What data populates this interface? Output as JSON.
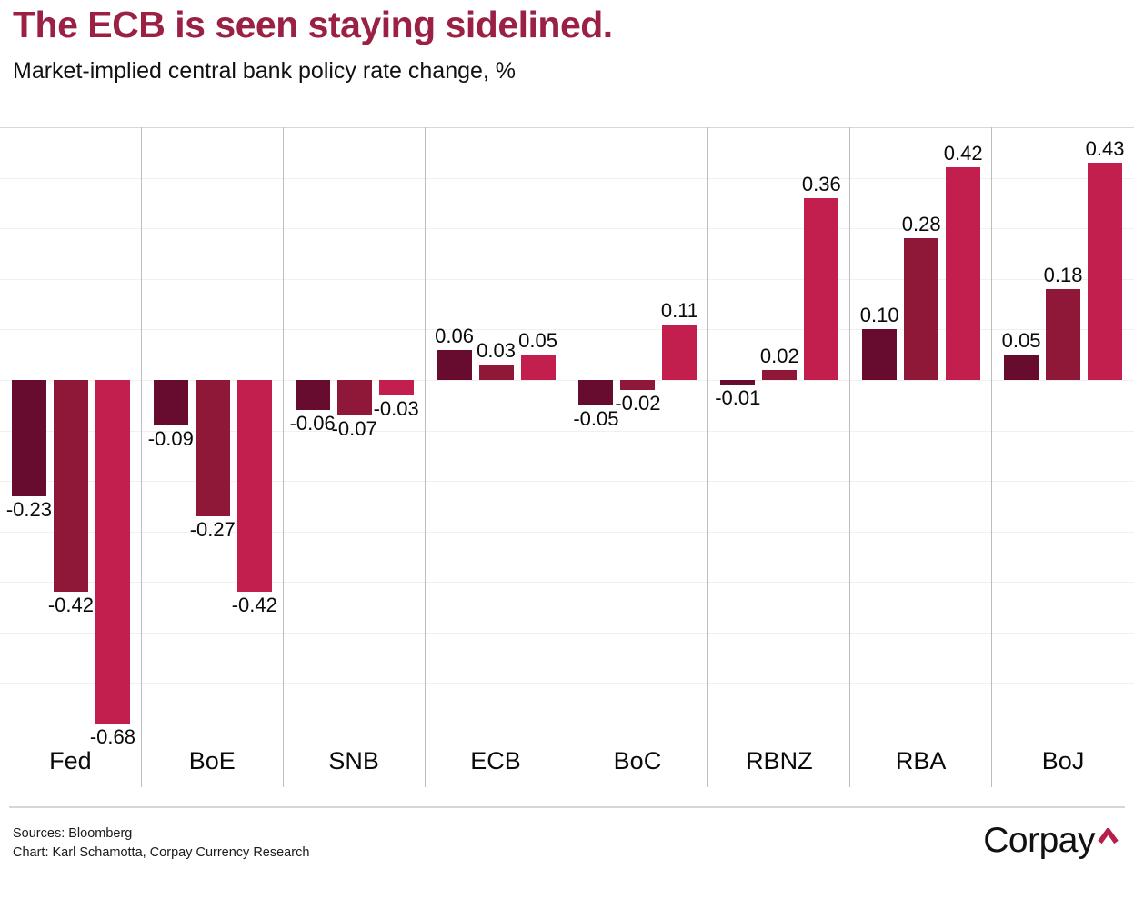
{
  "title": "The ECB is seen staying sidelined.",
  "subtitle": "Market-implied central bank policy rate change, %",
  "footer": {
    "sources_line": "Sources: Bloomberg",
    "credit_line": "Chart: Karl Schamotta, Corpay Currency Research",
    "brand": "Corpay"
  },
  "colors": {
    "title": "#9A2144",
    "series": [
      "#670C2F",
      "#8F1838",
      "#C21F4E"
    ],
    "brand_caret": "#B61F4A",
    "gridline": "#F0F0F0",
    "boundary_line": "#D8D8D8",
    "separator": "#BDBDBD",
    "label_text": "#0A0A0A"
  },
  "chart_data": {
    "type": "bar",
    "title": "The ECB is seen staying sidelined.",
    "subtitle": "Market-implied central bank policy rate change, %",
    "categories": [
      "Fed",
      "BoE",
      "SNB",
      "ECB",
      "BoC",
      "RBNZ",
      "RBA",
      "BoJ"
    ],
    "series": [
      {
        "name": "series-1",
        "color": "#670C2F",
        "values": [
          -0.23,
          -0.09,
          -0.06,
          0.06,
          -0.05,
          -0.01,
          0.1,
          0.05
        ]
      },
      {
        "name": "series-2",
        "color": "#8F1838",
        "values": [
          -0.42,
          -0.27,
          -0.07,
          0.03,
          -0.02,
          0.02,
          0.28,
          0.18
        ]
      },
      {
        "name": "series-3",
        "color": "#C21F4E",
        "values": [
          -0.68,
          -0.42,
          -0.03,
          0.05,
          0.11,
          0.36,
          0.42,
          0.43
        ]
      }
    ],
    "xlabel": "",
    "ylabel": "",
    "ylim": [
      -0.7,
      0.5
    ],
    "gridline_step": 0.1,
    "grid": true,
    "legend": "none",
    "value_labels": true,
    "value_label_format": "0.00"
  }
}
